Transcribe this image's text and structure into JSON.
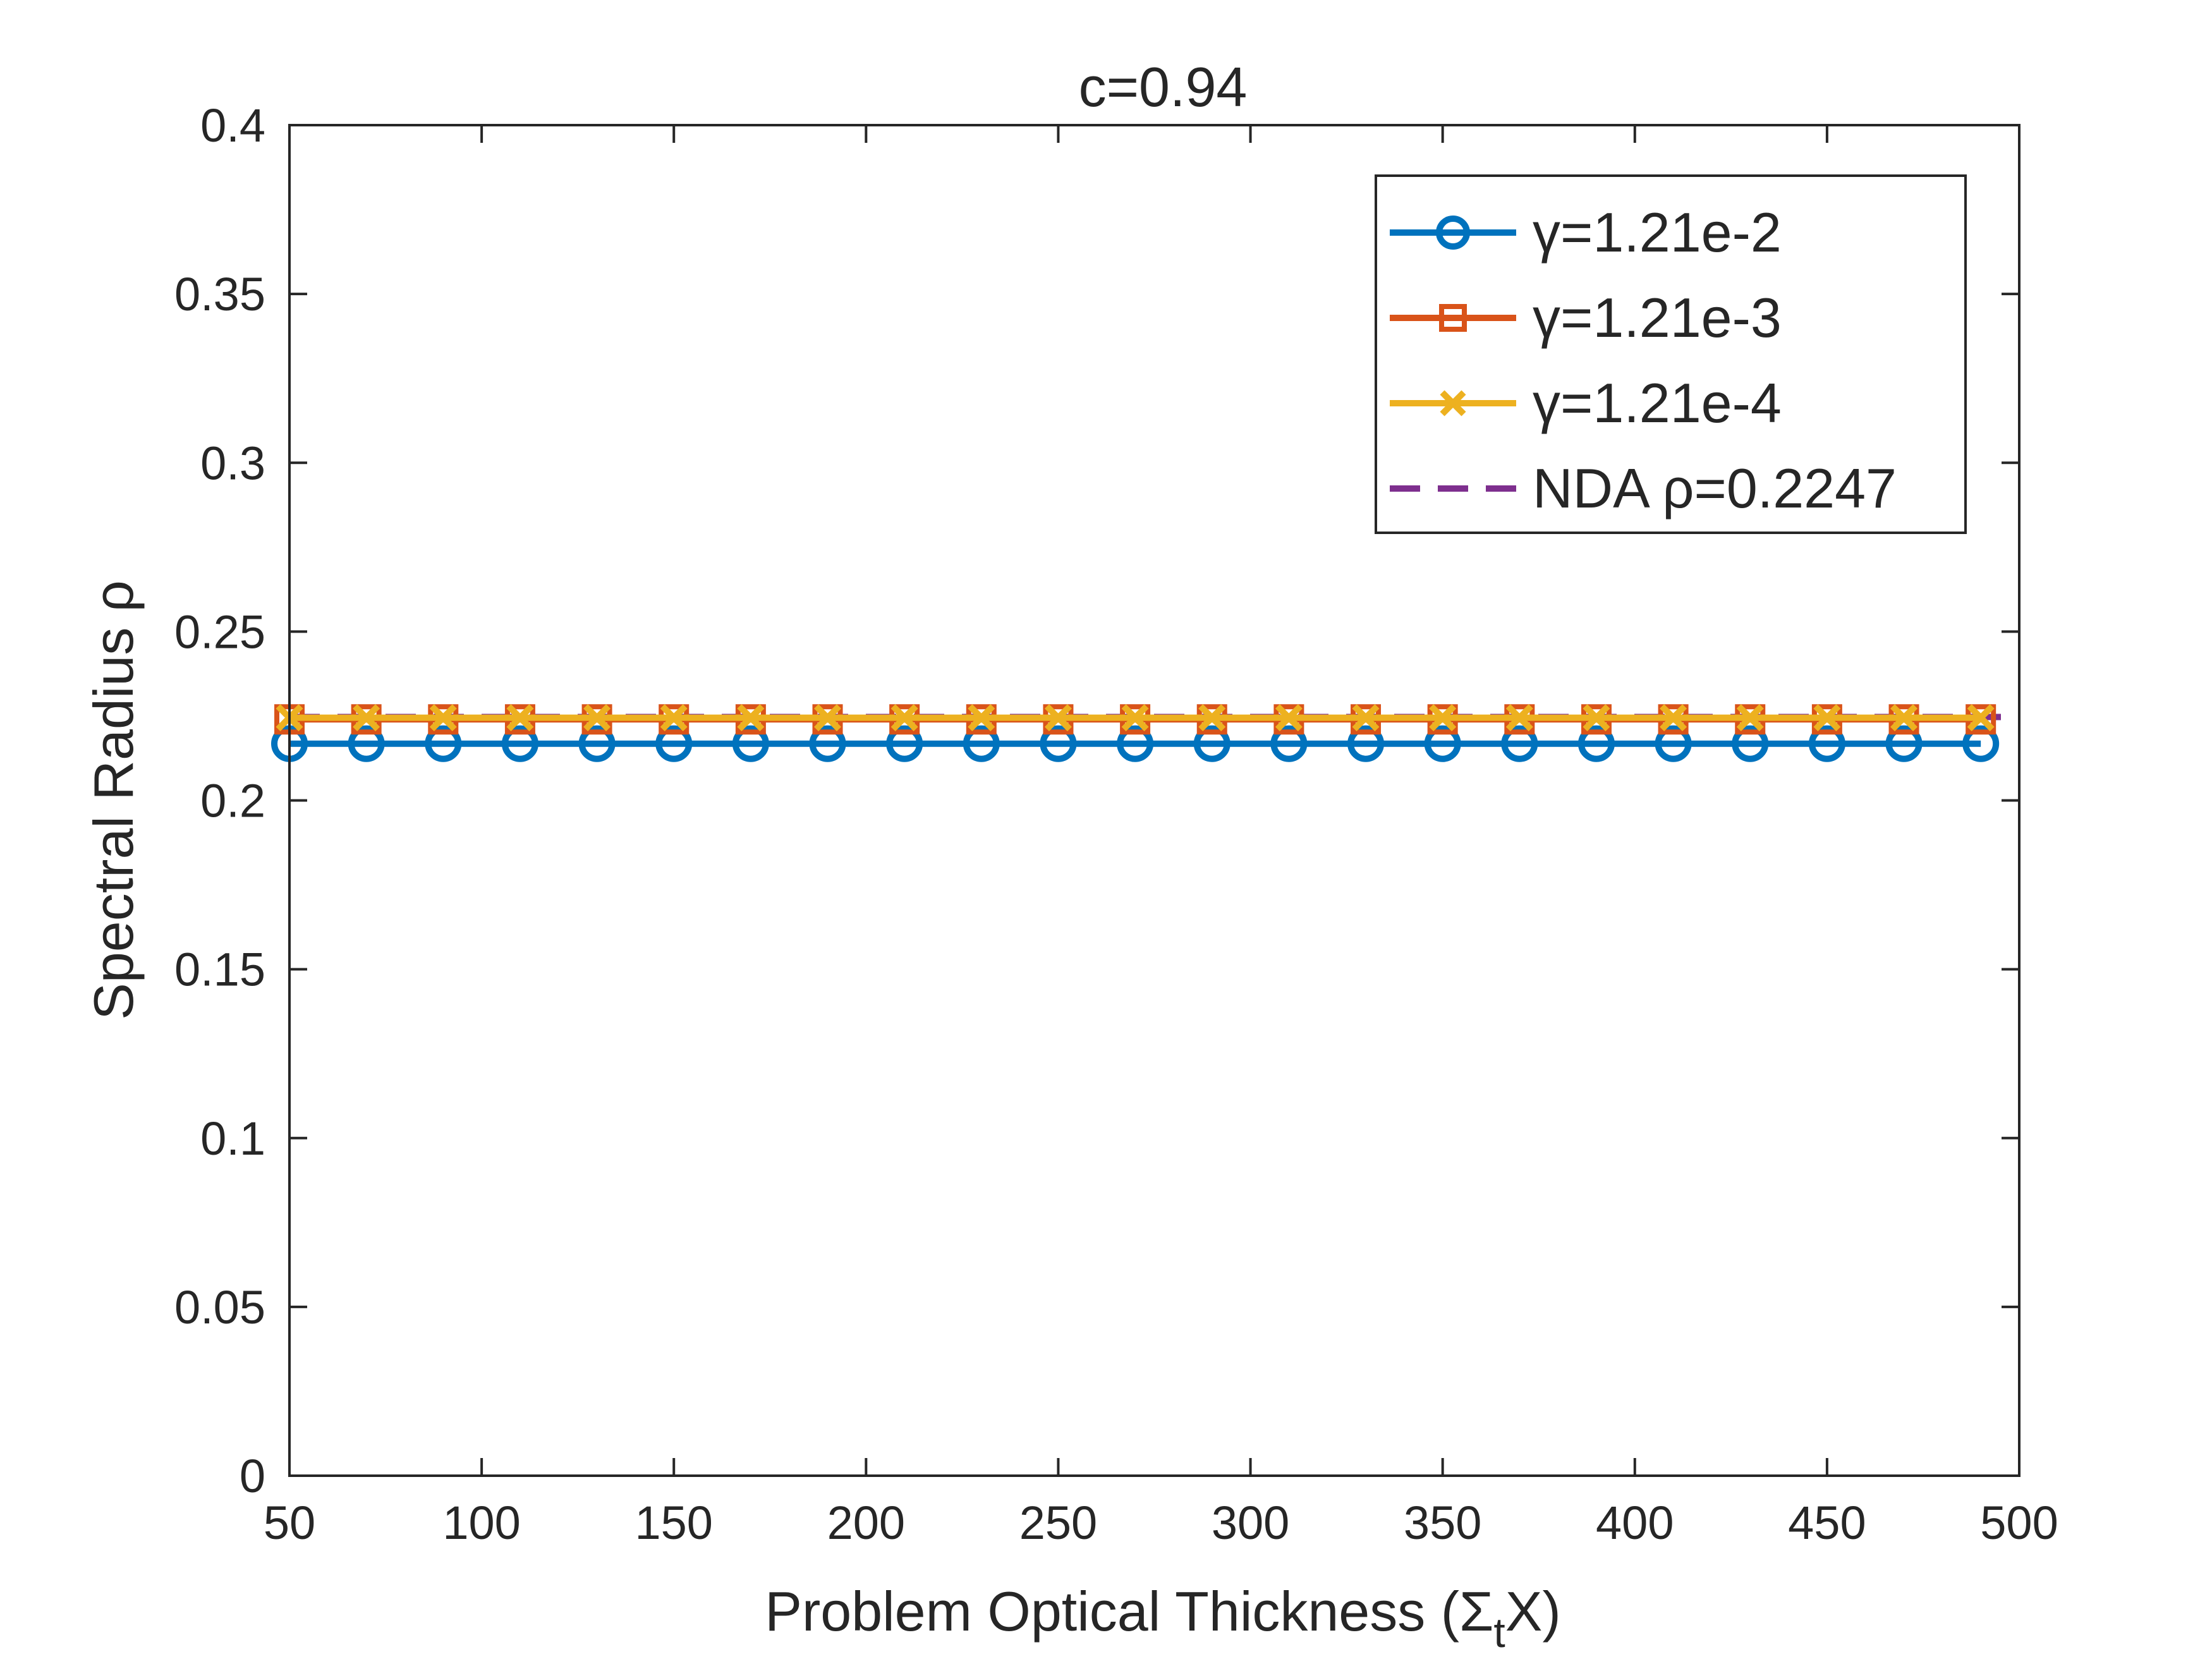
{
  "chart_data": {
    "type": "line",
    "title": "c=0.94",
    "xlabel": "Problem Optical Thickness (Σ",
    "xlabel_sub": "t",
    "xlabel_end": "X)",
    "ylabel": "Spectral Radius ρ",
    "xlim": [
      50,
      500
    ],
    "ylim": [
      0,
      0.4
    ],
    "x_ticks": [
      "50",
      "100",
      "150",
      "200",
      "250",
      "300",
      "350",
      "400",
      "450",
      "500"
    ],
    "y_ticks": [
      "0",
      "0.05",
      "0.1",
      "0.15",
      "0.2",
      "0.25",
      "0.3",
      "0.35",
      "0.4"
    ],
    "x": [
      50,
      70,
      90,
      110,
      130,
      150,
      170,
      190,
      210,
      230,
      250,
      270,
      290,
      310,
      330,
      350,
      370,
      390,
      410,
      430,
      450,
      470,
      490
    ],
    "series": [
      {
        "name": "γ=1.21e-2",
        "marker": "circle",
        "color": "#0072BD",
        "values": [
          0.2168,
          0.2168,
          0.2168,
          0.2168,
          0.2168,
          0.2168,
          0.2168,
          0.2168,
          0.2168,
          0.2168,
          0.2168,
          0.2168,
          0.2168,
          0.2168,
          0.2168,
          0.2168,
          0.2168,
          0.2168,
          0.2168,
          0.2168,
          0.2168,
          0.2168,
          0.2168
        ]
      },
      {
        "name": "γ=1.21e-3",
        "marker": "square",
        "color": "#D95319",
        "values": [
          0.224,
          0.224,
          0.224,
          0.224,
          0.224,
          0.224,
          0.224,
          0.224,
          0.224,
          0.224,
          0.224,
          0.224,
          0.224,
          0.224,
          0.224,
          0.224,
          0.224,
          0.224,
          0.224,
          0.224,
          0.224,
          0.224,
          0.224
        ]
      },
      {
        "name": "γ=1.21e-4",
        "marker": "x",
        "color": "#EDB120",
        "values": [
          0.2245,
          0.2245,
          0.2245,
          0.2245,
          0.2245,
          0.2245,
          0.2245,
          0.2245,
          0.2245,
          0.2245,
          0.2245,
          0.2245,
          0.2245,
          0.2245,
          0.2245,
          0.2245,
          0.2245,
          0.2245,
          0.2245,
          0.2245,
          0.2245,
          0.2245,
          0.2245
        ]
      }
    ],
    "reference_line": {
      "name": "NDA ρ=0.2247",
      "value": 0.2247,
      "style": "dashed",
      "color": "#7E2F8E"
    },
    "legend": "top-right",
    "grid": false
  }
}
